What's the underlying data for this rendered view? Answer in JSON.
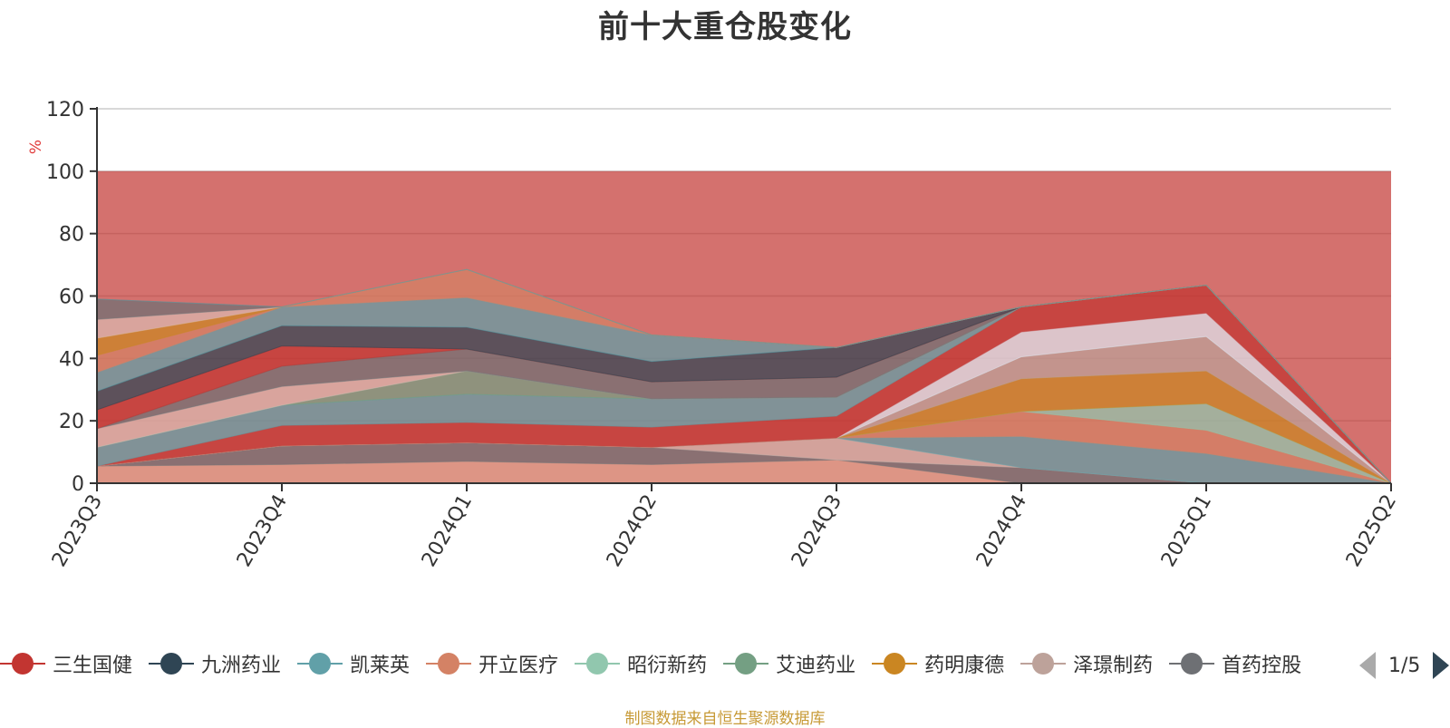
{
  "title": "前十大重仓股变化",
  "source_note": "制图数据来自恒生聚源数据库",
  "legend_pager": "1/5",
  "chart_data": {
    "type": "area",
    "stacked": true,
    "ylabel": "%",
    "ylim": [
      0,
      120
    ],
    "yticks": [
      0,
      20,
      40,
      60,
      80,
      100,
      120
    ],
    "grid": true,
    "categories": [
      "2023Q3",
      "2023Q4",
      "2024Q1",
      "2024Q2",
      "2024Q3",
      "2024Q4",
      "2025Q1",
      "2025Q2"
    ],
    "series": [
      {
        "name": "",
        "color": "#e0a38f",
        "values": [
          5.5,
          6,
          7,
          6,
          7.5,
          0,
          0,
          0
        ]
      },
      {
        "name": "",
        "color": "#6e7074",
        "values": [
          0,
          6,
          6,
          5.5,
          0,
          5,
          0,
          0
        ]
      },
      {
        "name": "",
        "color": "#d3b6ad",
        "values": [
          0,
          0,
          0,
          0,
          7,
          0,
          0,
          0
        ]
      },
      {
        "name": "",
        "color": "#61a0a8",
        "values": [
          0,
          0,
          0,
          0,
          0,
          10,
          9.5,
          0
        ]
      },
      {
        "name": "",
        "color": "#d48265",
        "values": [
          0,
          0,
          0,
          0,
          0,
          8,
          7.5,
          0
        ]
      },
      {
        "name": "",
        "color": "#91c7ae",
        "values": [
          0,
          0,
          0,
          0,
          0,
          0,
          8.5,
          0
        ]
      },
      {
        "name": "",
        "color": "#ca8622",
        "values": [
          0,
          0,
          0,
          0,
          0,
          10.5,
          10.5,
          0
        ]
      },
      {
        "name": "",
        "color": "#bda29a",
        "values": [
          0,
          0,
          0,
          0,
          0,
          7,
          11,
          0
        ]
      },
      {
        "name": "",
        "color": "#dfe4ee",
        "values": [
          0,
          0,
          0,
          0,
          0,
          8,
          7.5,
          0
        ]
      },
      {
        "name": "",
        "color": "#c23531",
        "values": [
          0,
          6.5,
          6.5,
          6.5,
          7,
          8,
          9,
          0
        ]
      },
      {
        "name": "",
        "color": "#61a0a8",
        "values": [
          6,
          6.5,
          9,
          9,
          6,
          0,
          0,
          0
        ]
      },
      {
        "name": "",
        "color": "#749f83",
        "values": [
          0,
          0,
          7.5,
          0,
          0,
          0,
          0,
          0
        ]
      },
      {
        "name": "",
        "color": "#dbb9b0",
        "values": [
          6,
          6,
          0,
          0,
          0,
          0,
          0,
          0
        ]
      },
      {
        "name": "",
        "color": "#6e7074",
        "values": [
          0,
          6.5,
          7,
          5.5,
          6.5,
          0,
          0,
          0
        ]
      },
      {
        "name": "",
        "color": "#c23531",
        "values": [
          6,
          6.5,
          0,
          0,
          0,
          0,
          0,
          0
        ]
      },
      {
        "name": "",
        "color": "#2f4554",
        "values": [
          6,
          6.5,
          7,
          6.5,
          9.5,
          0,
          0,
          0
        ]
      },
      {
        "name": "",
        "color": "#61a0a8",
        "values": [
          6,
          6,
          9.5,
          8.5,
          0,
          0,
          0,
          0
        ]
      },
      {
        "name": "",
        "color": "#d48265",
        "values": [
          5.5,
          0,
          9,
          0,
          0,
          0,
          0,
          0
        ]
      },
      {
        "name": "",
        "color": "#ca8622",
        "values": [
          5.5,
          0,
          0,
          0,
          0,
          0,
          0,
          0
        ]
      },
      {
        "name": "",
        "color": "#dbb9b0",
        "values": [
          6,
          0,
          0,
          0,
          0,
          0,
          0,
          0
        ]
      },
      {
        "name": "",
        "color": "#6e7074",
        "values": [
          6.5,
          0,
          0,
          0,
          0,
          0,
          0,
          0
        ]
      },
      {
        "name": "",
        "color": "#61a0a8",
        "values": [
          0,
          0,
          0,
          0,
          0,
          0,
          0,
          0
        ]
      }
    ],
    "legend": [
      {
        "name": "三生国健",
        "color": "#c23531"
      },
      {
        "name": "九洲药业",
        "color": "#2f4554"
      },
      {
        "name": "凯莱英",
        "color": "#61a0a8"
      },
      {
        "name": "开立医疗",
        "color": "#d48265"
      },
      {
        "name": "昭衍新药",
        "color": "#91c7ae"
      },
      {
        "name": "艾迪药业",
        "color": "#749f83"
      },
      {
        "name": "药明康德",
        "color": "#ca8622"
      },
      {
        "name": "泽璟制药",
        "color": "#bda29a"
      },
      {
        "name": "首药控股",
        "color": "#6e7074"
      }
    ],
    "background_band": {
      "from": 0,
      "to": 100,
      "color": "#c23531"
    }
  }
}
